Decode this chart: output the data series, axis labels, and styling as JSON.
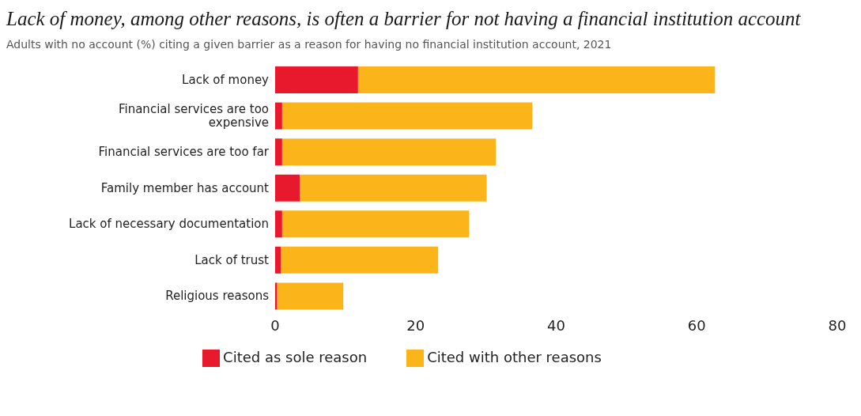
{
  "chart_data": {
    "type": "bar",
    "orientation": "horizontal",
    "stacked": true,
    "title": "Lack of money, among other reasons, is often a barrier for not having a financial institution account",
    "subtitle": "Adults with no account (%) citing a given barrier as a reason for having no financial institution account, 2021",
    "categories": [
      "Lack of money",
      "Financial services are too expensive",
      "Financial services are too far",
      "Family member has account",
      "Lack of necessary documentation",
      "Lack of trust",
      "Religious reasons"
    ],
    "series": [
      {
        "name": "Cited as sole reason",
        "color": "#e8192c",
        "values": [
          11.8,
          1.0,
          1.0,
          3.5,
          1.0,
          0.8,
          0.3
        ]
      },
      {
        "name": "Cited with other reasons",
        "color": "#fbb41a",
        "values": [
          50.8,
          35.6,
          30.4,
          26.6,
          26.6,
          22.4,
          9.4
        ]
      }
    ],
    "xlim": [
      0,
      80
    ],
    "xticks": [
      0,
      20,
      40,
      60,
      80
    ],
    "grid": false,
    "legend": "bottom"
  }
}
